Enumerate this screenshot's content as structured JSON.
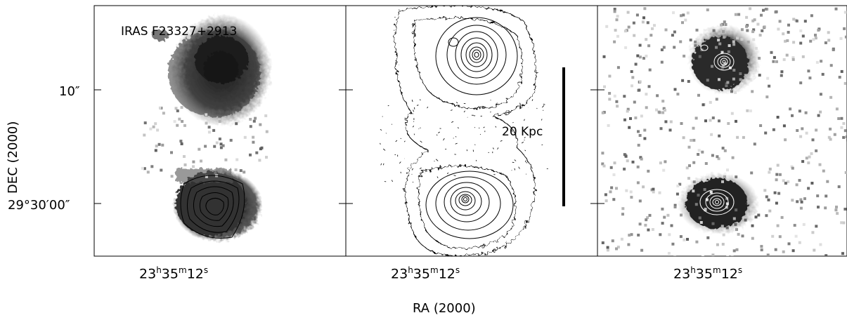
{
  "figure": {
    "object_label": "IRAS F23327+2913",
    "scale_bar_label": "20 Kpc",
    "y_axis_label": "DEC (2000)",
    "x_axis_label": "RA (2000)",
    "y_ticks": [
      "10″",
      "29°30′00″"
    ],
    "x_tick_label": "23h35m12s",
    "panels": [
      {
        "name": "left-panel",
        "content": "grayscale image with contours on southern nucleus"
      },
      {
        "name": "middle-panel",
        "content": "contour map"
      },
      {
        "name": "right-panel",
        "content": "grayscale image with white contours"
      }
    ]
  }
}
